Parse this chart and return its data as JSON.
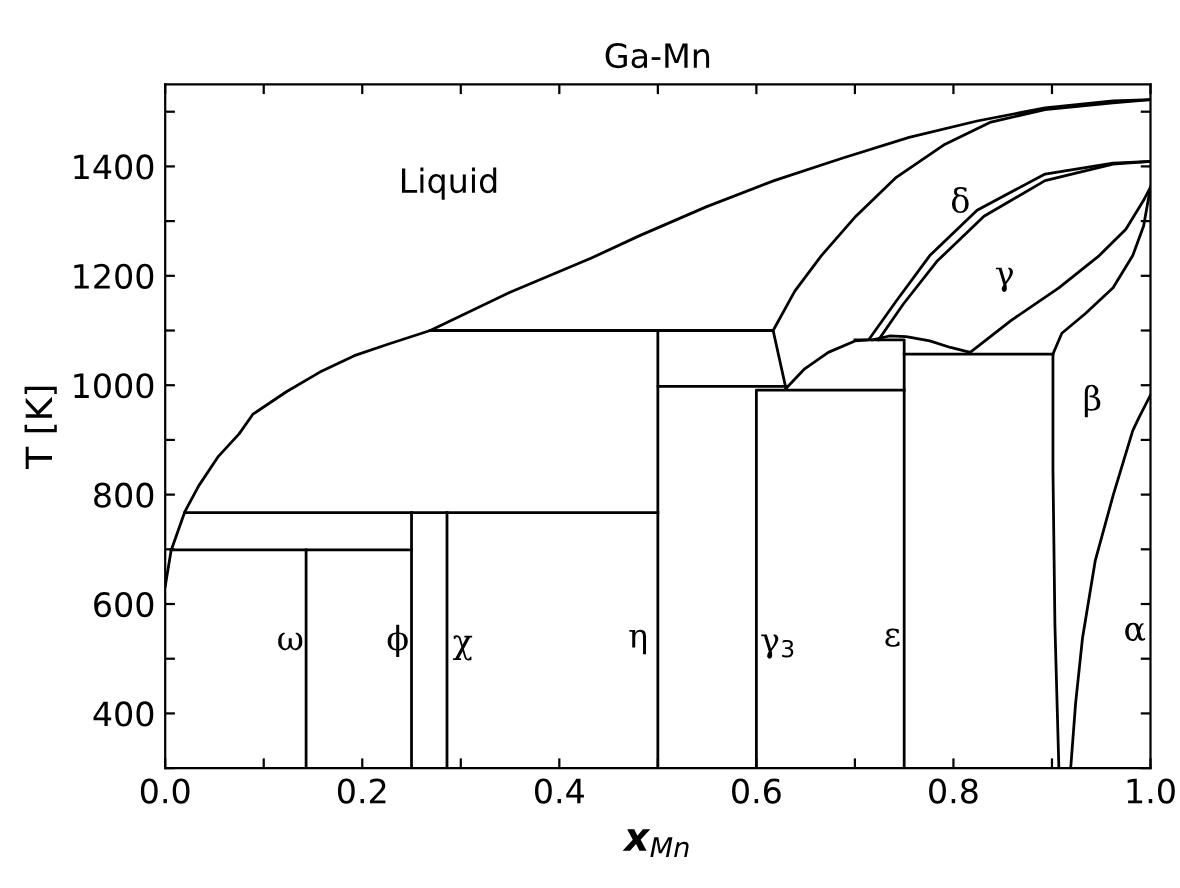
{
  "chart_data": {
    "type": "line",
    "title": "Ga-Mn",
    "xlabel": "x$_{Mn}$",
    "ylabel": "T [K]",
    "xlim": [
      0,
      1
    ],
    "ylim": [
      300,
      1550
    ],
    "xticks": [
      {
        "value": 0,
        "label": "0.0"
      },
      {
        "value": 0.1,
        "label": null
      },
      {
        "value": 0.2,
        "label": "0.2"
      },
      {
        "value": 0.3,
        "label": null
      },
      {
        "value": 0.4,
        "label": "0.4"
      },
      {
        "value": 0.5,
        "label": null
      },
      {
        "value": 0.6,
        "label": "0.6"
      },
      {
        "value": 0.7,
        "label": null
      },
      {
        "value": 0.8,
        "label": "0.8"
      },
      {
        "value": 0.9,
        "label": null
      },
      {
        "value": 1.0,
        "label": "1.0"
      }
    ],
    "yticks": [
      {
        "value": 300,
        "label": null
      },
      400,
      {
        "value": 500,
        "label": null
      },
      600,
      {
        "value": 700,
        "label": null
      },
      800,
      {
        "value": 900,
        "label": null
      },
      1000,
      {
        "value": 1100,
        "label": null
      },
      1200,
      {
        "value": 1300,
        "label": null
      },
      1400,
      {
        "value": 1500,
        "label": null
      }
    ],
    "grid": false,
    "legend": false,
    "marker": "none",
    "line_style": "solid",
    "series": [
      {
        "color": "#000000",
        "x": [
          0.0,
          0.006,
          0.02,
          0.034,
          0.054,
          0.075,
          0.089,
          0.123,
          0.157,
          0.192,
          0.226,
          0.269,
          0.35,
          0.432,
          0.481,
          0.549,
          0.618,
          0.687,
          0.755,
          0.824,
          0.893,
          0.962,
          1.0
        ],
        "values": [
          632,
          698,
          769,
          816,
          870,
          911,
          947,
          988,
          1024,
          1054,
          1075,
          1100,
          1170,
          1232,
          1273,
          1326,
          1374,
          1415,
          1453,
          1483,
          1507,
          1520,
          1522
        ]
      },
      {
        "color": "#000000",
        "x": [
          0.63,
          0.617,
          0.639,
          0.666,
          0.701,
          0.742,
          0.79,
          0.838,
          0.893,
          0.962,
          1.0
        ],
        "values": [
          994,
          1100,
          1172,
          1237,
          1309,
          1380,
          1439,
          1481,
          1504,
          1516,
          1522
        ]
      },
      {
        "color": "#000000",
        "x": [
          0.63,
          0.649,
          0.673,
          0.7,
          0.714,
          0.742,
          0.776,
          0.824,
          0.893,
          0.962,
          1.0
        ],
        "values": [
          994,
          1030,
          1060,
          1081,
          1083,
          1154,
          1237,
          1320,
          1386,
          1406,
          1409
        ]
      },
      {
        "color": "#000000",
        "x": [
          0.724,
          0.749,
          0.783,
          0.831,
          0.893,
          0.962,
          1.0
        ],
        "values": [
          1083,
          1148,
          1226,
          1309,
          1374,
          1404,
          1409
        ]
      },
      {
        "color": "#000000",
        "x": [
          0.718,
          0.735,
          0.752,
          0.776,
          0.797,
          0.817,
          0.859,
          0.907,
          0.948,
          0.975,
          0.993,
          1.0
        ],
        "values": [
          1083,
          1090,
          1089,
          1081,
          1069,
          1060,
          1119,
          1178,
          1237,
          1285,
          1338,
          1362
        ]
      },
      {
        "color": "#000000",
        "x": [
          0.907,
          0.903,
          0.901,
          0.901,
          0.91,
          0.934,
          0.962,
          0.982,
          0.993,
          1.0
        ],
        "values": [
          300,
          561,
          846,
          1057,
          1095,
          1131,
          1178,
          1237,
          1291,
          1362
        ]
      },
      {
        "color": "#000000",
        "x": [
          0.919,
          0.924,
          0.931,
          0.944,
          0.962,
          0.982,
          0.988,
          1.0
        ],
        "values": [
          300,
          419,
          538,
          680,
          798,
          917,
          940,
          982
        ]
      },
      {
        "color": "#000000",
        "x": [
          0.02,
          0.5
        ],
        "values": [
          767,
          767
        ]
      },
      {
        "color": "#000000",
        "x": [
          0.006,
          0.25
        ],
        "values": [
          699,
          699
        ]
      },
      {
        "color": "#000000",
        "x": [
          0.143,
          0.143
        ],
        "values": [
          300,
          699
        ]
      },
      {
        "color": "#000000",
        "x": [
          0.25,
          0.25
        ],
        "values": [
          300,
          767
        ]
      },
      {
        "color": "#000000",
        "x": [
          0.286,
          0.286
        ],
        "values": [
          300,
          767
        ]
      },
      {
        "color": "#000000",
        "x": [
          0.269,
          0.5,
          0.5,
          0.5,
          0.617
        ],
        "values": [
          1100,
          1100,
          998,
          1100,
          1100
        ]
      },
      {
        "color": "#000000",
        "x": [
          0.5,
          0.5,
          0.63
        ],
        "values": [
          300,
          998,
          998
        ]
      },
      {
        "color": "#000000",
        "x": [
          0.6,
          0.6,
          0.75
        ],
        "values": [
          300,
          991,
          991
        ]
      },
      {
        "color": "#000000",
        "x": [
          0.75,
          0.75,
          0.7
        ],
        "values": [
          300,
          1083,
          1083
        ]
      },
      {
        "color": "#000000",
        "x": [
          0.75,
          0.901
        ],
        "values": [
          1057,
          1057
        ]
      }
    ],
    "annotations": [
      "Liquid",
      "δ",
      "γ",
      "β",
      "α",
      "ω",
      "ϕ",
      "χ",
      "η",
      "γ$_{3}$",
      "ε"
    ]
  }
}
